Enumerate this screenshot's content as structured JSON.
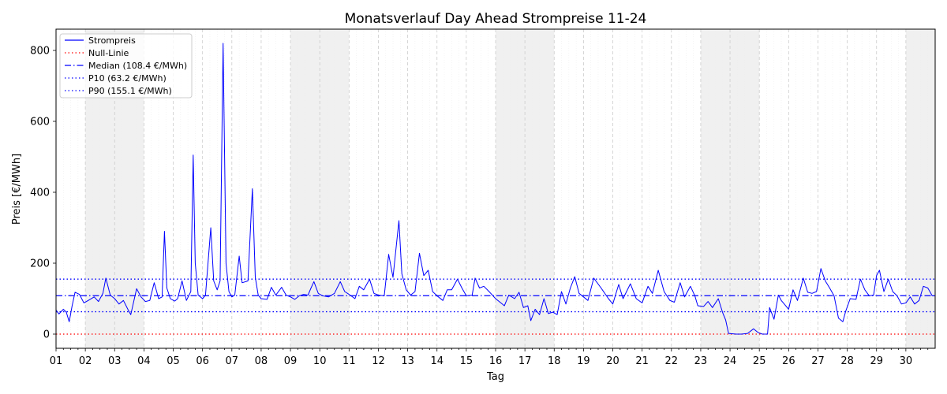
{
  "chart_data": {
    "type": "line",
    "title": "Monatsverlauf Day Ahead Strompreise 11-24",
    "xlabel": "Tag",
    "ylabel": "Preis [€/MWh]",
    "xlim": [
      1,
      31
    ],
    "ylim": [
      -40,
      860
    ],
    "yticks": [
      0,
      200,
      400,
      600,
      800
    ],
    "xticks": [
      "01",
      "02",
      "03",
      "04",
      "05",
      "06",
      "07",
      "08",
      "09",
      "10",
      "11",
      "12",
      "13",
      "14",
      "15",
      "16",
      "17",
      "18",
      "19",
      "20",
      "21",
      "22",
      "23",
      "24",
      "25",
      "26",
      "27",
      "28",
      "29",
      "30"
    ],
    "weekend_days": [
      2,
      3,
      9,
      10,
      16,
      17,
      23,
      24,
      30
    ],
    "grid": true,
    "legend_position": "top-left",
    "colors": {
      "series": "#0000ff",
      "zero": "#ff0000",
      "median": "#0000ff",
      "p10": "#0000ff",
      "p90": "#0000ff",
      "weekend": "#f0f0f0"
    },
    "reference_lines": [
      {
        "name": "Null-Linie",
        "value": 0,
        "style": "dotted",
        "color": "#ff0000"
      },
      {
        "name": "Median (108.4 €/MWh)",
        "value": 108.4,
        "style": "dashdot",
        "color": "#0000ff"
      },
      {
        "name": "P10 (63.2 €/MWh)",
        "value": 63.2,
        "style": "dotted",
        "color": "#0000ff"
      },
      {
        "name": "P90 (155.1 €/MWh)",
        "value": 155.1,
        "style": "dotted",
        "color": "#0000ff"
      }
    ],
    "series": [
      {
        "name": "Strompreis",
        "points": [
          [
            1.0,
            68
          ],
          [
            1.1,
            57
          ],
          [
            1.25,
            70
          ],
          [
            1.35,
            62
          ],
          [
            1.45,
            35
          ],
          [
            1.55,
            80
          ],
          [
            1.65,
            118
          ],
          [
            1.8,
            112
          ],
          [
            1.95,
            88
          ],
          [
            2.1,
            95
          ],
          [
            2.3,
            105
          ],
          [
            2.45,
            92
          ],
          [
            2.6,
            115
          ],
          [
            2.7,
            158
          ],
          [
            2.85,
            110
          ],
          [
            3.0,
            100
          ],
          [
            3.15,
            85
          ],
          [
            3.3,
            95
          ],
          [
            3.45,
            70
          ],
          [
            3.55,
            55
          ],
          [
            3.75,
            128
          ],
          [
            3.9,
            105
          ],
          [
            4.05,
            92
          ],
          [
            4.2,
            95
          ],
          [
            4.35,
            145
          ],
          [
            4.5,
            100
          ],
          [
            4.62,
            105
          ],
          [
            4.7,
            290
          ],
          [
            4.78,
            130
          ],
          [
            4.9,
            100
          ],
          [
            5.05,
            93
          ],
          [
            5.15,
            100
          ],
          [
            5.3,
            150
          ],
          [
            5.45,
            95
          ],
          [
            5.6,
            120
          ],
          [
            5.68,
            505
          ],
          [
            5.75,
            200
          ],
          [
            5.85,
            110
          ],
          [
            6.0,
            100
          ],
          [
            6.1,
            110
          ],
          [
            6.28,
            300
          ],
          [
            6.38,
            150
          ],
          [
            6.5,
            125
          ],
          [
            6.6,
            150
          ],
          [
            6.7,
            820
          ],
          [
            6.8,
            200
          ],
          [
            6.9,
            120
          ],
          [
            7.0,
            105
          ],
          [
            7.1,
            110
          ],
          [
            7.25,
            220
          ],
          [
            7.35,
            145
          ],
          [
            7.55,
            150
          ],
          [
            7.7,
            410
          ],
          [
            7.8,
            160
          ],
          [
            7.9,
            110
          ],
          [
            8.0,
            100
          ],
          [
            8.2,
            98
          ],
          [
            8.35,
            132
          ],
          [
            8.5,
            110
          ],
          [
            8.7,
            132
          ],
          [
            8.85,
            110
          ],
          [
            9.0,
            105
          ],
          [
            9.15,
            98
          ],
          [
            9.3,
            108
          ],
          [
            9.45,
            112
          ],
          [
            9.6,
            110
          ],
          [
            9.7,
            130
          ],
          [
            9.8,
            148
          ],
          [
            9.95,
            115
          ],
          [
            10.1,
            108
          ],
          [
            10.3,
            105
          ],
          [
            10.5,
            115
          ],
          [
            10.7,
            148
          ],
          [
            10.85,
            120
          ],
          [
            11.0,
            112
          ],
          [
            11.2,
            100
          ],
          [
            11.35,
            135
          ],
          [
            11.5,
            125
          ],
          [
            11.7,
            155
          ],
          [
            11.85,
            115
          ],
          [
            12.0,
            110
          ],
          [
            12.2,
            108
          ],
          [
            12.35,
            225
          ],
          [
            12.5,
            160
          ],
          [
            12.7,
            320
          ],
          [
            12.8,
            170
          ],
          [
            12.95,
            125
          ],
          [
            13.1,
            110
          ],
          [
            13.25,
            120
          ],
          [
            13.4,
            228
          ],
          [
            13.55,
            165
          ],
          [
            13.7,
            180
          ],
          [
            13.85,
            120
          ],
          [
            14.0,
            108
          ],
          [
            14.2,
            95
          ],
          [
            14.35,
            125
          ],
          [
            14.5,
            125
          ],
          [
            14.7,
            155
          ],
          [
            14.85,
            130
          ],
          [
            15.0,
            108
          ],
          [
            15.2,
            110
          ],
          [
            15.3,
            158
          ],
          [
            15.45,
            130
          ],
          [
            15.6,
            135
          ],
          [
            15.8,
            118
          ],
          [
            16.0,
            100
          ],
          [
            16.15,
            90
          ],
          [
            16.3,
            80
          ],
          [
            16.45,
            110
          ],
          [
            16.65,
            100
          ],
          [
            16.8,
            118
          ],
          [
            16.95,
            75
          ],
          [
            17.1,
            80
          ],
          [
            17.2,
            38
          ],
          [
            17.35,
            70
          ],
          [
            17.5,
            55
          ],
          [
            17.65,
            100
          ],
          [
            17.8,
            58
          ],
          [
            17.95,
            62
          ],
          [
            18.1,
            55
          ],
          [
            18.25,
            120
          ],
          [
            18.4,
            85
          ],
          [
            18.55,
            130
          ],
          [
            18.7,
            162
          ],
          [
            18.85,
            115
          ],
          [
            19.0,
            105
          ],
          [
            19.15,
            95
          ],
          [
            19.35,
            158
          ],
          [
            19.6,
            130
          ],
          [
            19.85,
            100
          ],
          [
            20.0,
            85
          ],
          [
            20.2,
            140
          ],
          [
            20.35,
            100
          ],
          [
            20.6,
            142
          ],
          [
            20.8,
            100
          ],
          [
            21.0,
            88
          ],
          [
            21.2,
            135
          ],
          [
            21.35,
            115
          ],
          [
            21.55,
            180
          ],
          [
            21.75,
            120
          ],
          [
            21.95,
            95
          ],
          [
            22.1,
            90
          ],
          [
            22.3,
            145
          ],
          [
            22.45,
            105
          ],
          [
            22.65,
            135
          ],
          [
            22.8,
            108
          ],
          [
            22.9,
            80
          ],
          [
            23.1,
            78
          ],
          [
            23.25,
            92
          ],
          [
            23.4,
            75
          ],
          [
            23.6,
            100
          ],
          [
            23.75,
            60
          ],
          [
            23.85,
            40
          ],
          [
            23.95,
            2
          ],
          [
            24.2,
            0
          ],
          [
            24.4,
            0
          ],
          [
            24.6,
            2
          ],
          [
            24.8,
            15
          ],
          [
            24.95,
            5
          ],
          [
            25.1,
            0
          ],
          [
            25.28,
            0
          ],
          [
            25.35,
            75
          ],
          [
            25.5,
            42
          ],
          [
            25.65,
            110
          ],
          [
            25.75,
            95
          ],
          [
            25.85,
            85
          ],
          [
            26.0,
            70
          ],
          [
            26.15,
            125
          ],
          [
            26.3,
            95
          ],
          [
            26.5,
            158
          ],
          [
            26.65,
            118
          ],
          [
            26.8,
            115
          ],
          [
            26.95,
            120
          ],
          [
            27.1,
            185
          ],
          [
            27.25,
            150
          ],
          [
            27.4,
            130
          ],
          [
            27.55,
            108
          ],
          [
            27.7,
            45
          ],
          [
            27.85,
            35
          ],
          [
            27.95,
            65
          ],
          [
            28.1,
            100
          ],
          [
            28.3,
            98
          ],
          [
            28.45,
            155
          ],
          [
            28.6,
            125
          ],
          [
            28.75,
            108
          ],
          [
            28.9,
            110
          ],
          [
            29.0,
            165
          ],
          [
            29.1,
            180
          ],
          [
            29.25,
            120
          ],
          [
            29.4,
            155
          ],
          [
            29.55,
            120
          ],
          [
            29.7,
            108
          ],
          [
            29.85,
            85
          ],
          [
            30.0,
            88
          ],
          [
            30.15,
            105
          ],
          [
            30.3,
            85
          ],
          [
            30.45,
            95
          ],
          [
            30.6,
            135
          ],
          [
            30.75,
            130
          ],
          [
            30.9,
            108
          ],
          [
            31.0,
            108
          ]
        ]
      }
    ]
  }
}
